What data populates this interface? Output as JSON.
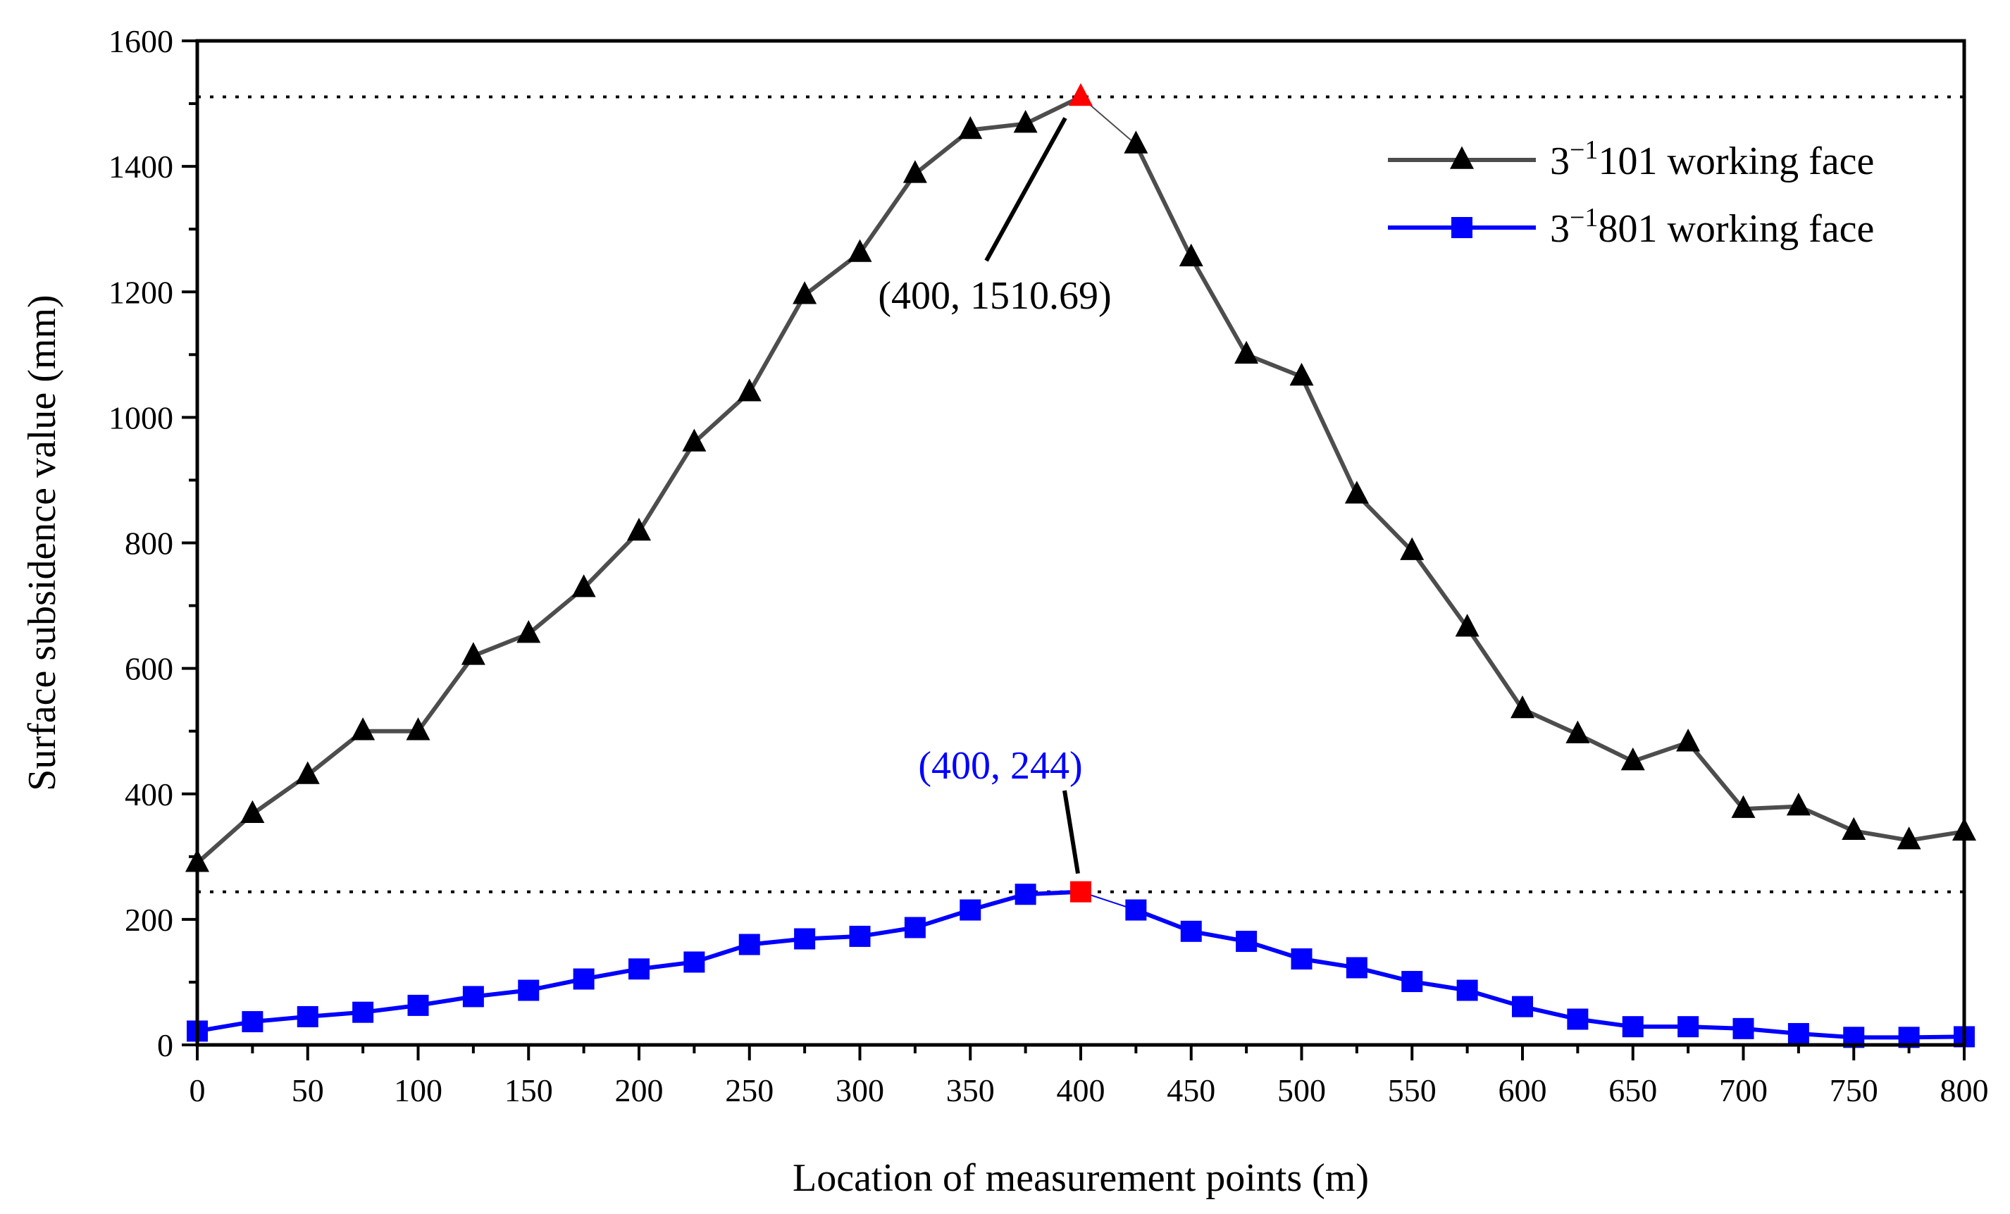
{
  "chart_data": {
    "type": "line",
    "title": "",
    "xlabel": "Location of measurement points (m)",
    "ylabel": "Surface subsidence value (mm)",
    "xlim": [
      0,
      800
    ],
    "ylim": [
      0,
      1600
    ],
    "xticks": [
      0,
      50,
      100,
      150,
      200,
      250,
      300,
      350,
      400,
      450,
      500,
      550,
      600,
      650,
      700,
      750,
      800
    ],
    "yticks": [
      0,
      200,
      400,
      600,
      800,
      1000,
      1200,
      1400,
      1600
    ],
    "grid": false,
    "legend_position": "top-right",
    "x": [
      0,
      25,
      50,
      75,
      100,
      125,
      150,
      175,
      200,
      225,
      250,
      275,
      300,
      325,
      350,
      375,
      400,
      425,
      450,
      475,
      500,
      525,
      550,
      575,
      600,
      625,
      650,
      675,
      700,
      725,
      750,
      775,
      800
    ],
    "series": [
      {
        "name_base": "3",
        "name_sup": "−1",
        "name_rest": "101 working face",
        "color": "#4d4d4d",
        "marker_color": "#000000",
        "marker": "triangle",
        "values": [
          290,
          368,
          430,
          500,
          500,
          620,
          655,
          728,
          818,
          960,
          1040,
          1195,
          1262,
          1388,
          1458,
          1468,
          1510.69,
          1435,
          1255,
          1100,
          1065,
          877,
          787,
          665,
          535,
          495,
          452,
          482,
          376,
          380,
          341,
          326,
          340
        ]
      },
      {
        "name_base": "3",
        "name_sup": "−1",
        "name_rest": "801 working face",
        "color": "#0000ff",
        "marker_color": "#0000ff",
        "marker": "square",
        "values": [
          22,
          37,
          45,
          52,
          63,
          77,
          87,
          105,
          121,
          132,
          160,
          169,
          173,
          187,
          215,
          240,
          244,
          215,
          181,
          165,
          137,
          123,
          101,
          87,
          61,
          41,
          29,
          29,
          26,
          18,
          12,
          12,
          13
        ]
      }
    ],
    "reference_lines": [
      1510.69,
      244
    ],
    "highlight_color": "#ff0000",
    "annotations": [
      {
        "text": "(400, 1510.69)",
        "x": 400,
        "y": 1510.69,
        "color": "#000000"
      },
      {
        "text": "(400, 244)",
        "x": 400,
        "y": 244,
        "color": "#0000ff"
      }
    ]
  }
}
